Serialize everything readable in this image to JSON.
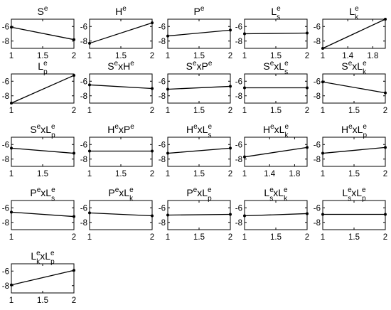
{
  "chart_data": [
    {
      "type": "line",
      "title": {
        "base": "S",
        "sup": "e",
        "sub": ""
      },
      "title_text": "Se",
      "x": [
        1,
        2
      ],
      "y": [
        -6.1,
        -7.8
      ],
      "xlim": [
        1,
        2
      ],
      "ylim": [
        -9,
        -5
      ],
      "xticks": [
        "1",
        "1.5",
        "2"
      ],
      "yticks": [
        "-6",
        "-8"
      ]
    },
    {
      "type": "line",
      "title": {
        "base": "H",
        "sup": "e",
        "sub": ""
      },
      "title_text": "He",
      "x": [
        1,
        2
      ],
      "y": [
        -8.3,
        -5.5
      ],
      "xlim": [
        1,
        2
      ],
      "ylim": [
        -9,
        -5
      ],
      "xticks": [
        "1",
        "1.5",
        "2"
      ],
      "yticks": [
        "-6",
        "-8"
      ]
    },
    {
      "type": "line",
      "title": {
        "base": "P",
        "sup": "e",
        "sub": ""
      },
      "title_text": "Pe",
      "x": [
        1,
        2
      ],
      "y": [
        -7.3,
        -6.5
      ],
      "xlim": [
        1,
        2
      ],
      "ylim": [
        -9,
        -5
      ],
      "xticks": [
        "1",
        "1.5",
        "2"
      ],
      "yticks": [
        "-6",
        "-8"
      ]
    },
    {
      "type": "line",
      "title": {
        "base": "L",
        "sup": "e",
        "sub": "s"
      },
      "title_text": "Les",
      "x": [
        1,
        2
      ],
      "y": [
        -7.0,
        -6.9
      ],
      "xlim": [
        1,
        2
      ],
      "ylim": [
        -9,
        -5
      ],
      "xticks": [
        "1",
        "1.5",
        "2"
      ],
      "yticks": [
        "-6",
        "-8"
      ]
    },
    {
      "type": "line",
      "title": {
        "base": "L",
        "sup": "e",
        "sub": "k"
      },
      "title_text": "Lek",
      "x": [
        1,
        2
      ],
      "y": [
        -9.0,
        -4.8
      ],
      "xlim": [
        1,
        2
      ],
      "ylim": [
        -9,
        -5
      ],
      "xticks": [
        "1",
        "1.4",
        "1.8"
      ],
      "yticks": [
        "-6",
        "-8"
      ]
    },
    {
      "type": "line",
      "title": {
        "base": "L",
        "sup": "e",
        "sub": "p"
      },
      "title_text": "Lep",
      "x": [
        1,
        2
      ],
      "y": [
        -9.0,
        -5.2
      ],
      "xlim": [
        1,
        2
      ],
      "ylim": [
        -9,
        -5
      ],
      "xticks": [
        "1",
        "2"
      ],
      "yticks": [
        "-6",
        "-8"
      ]
    },
    {
      "type": "line",
      "title": {
        "segments": [
          {
            "base": "S",
            "sup": "e",
            "sub": ""
          },
          {
            "base": "xH",
            "sup": "e",
            "sub": ""
          }
        ]
      },
      "title_text": "SexHe",
      "x": [
        1,
        2
      ],
      "y": [
        -6.5,
        -7.0
      ],
      "xlim": [
        1,
        2
      ],
      "ylim": [
        -9,
        -5
      ],
      "xticks": [
        "1",
        "2"
      ],
      "yticks": [
        "-6",
        "-8"
      ]
    },
    {
      "type": "line",
      "title": {
        "segments": [
          {
            "base": "S",
            "sup": "e",
            "sub": ""
          },
          {
            "base": "xP",
            "sup": "e",
            "sub": ""
          }
        ]
      },
      "title_text": "SexPe",
      "x": [
        1,
        2
      ],
      "y": [
        -7.1,
        -6.7
      ],
      "xlim": [
        1,
        2
      ],
      "ylim": [
        -9,
        -5
      ],
      "xticks": [
        "1",
        "1.5",
        "2"
      ],
      "yticks": [
        "-6",
        "-8"
      ]
    },
    {
      "type": "line",
      "title": {
        "segments": [
          {
            "base": "S",
            "sup": "e",
            "sub": ""
          },
          {
            "base": "xL",
            "sup": "e",
            "sub": "s"
          }
        ]
      },
      "title_text": "SexLes",
      "x": [
        1,
        2
      ],
      "y": [
        -6.9,
        -6.9
      ],
      "xlim": [
        1,
        2
      ],
      "ylim": [
        -9,
        -5
      ],
      "xticks": [
        "1",
        "1.5",
        "2"
      ],
      "yticks": [
        "-6",
        "-8"
      ]
    },
    {
      "type": "line",
      "title": {
        "segments": [
          {
            "base": "S",
            "sup": "e",
            "sub": ""
          },
          {
            "base": "xL",
            "sup": "e",
            "sub": "k"
          }
        ]
      },
      "title_text": "SexLek",
      "x": [
        1,
        2
      ],
      "y": [
        -6.1,
        -7.6
      ],
      "xlim": [
        1,
        2
      ],
      "ylim": [
        -9,
        -5
      ],
      "xticks": [
        "1",
        "1.5",
        "2"
      ],
      "yticks": [
        "-6",
        "-8"
      ]
    },
    {
      "type": "line",
      "title": {
        "segments": [
          {
            "base": "S",
            "sup": "e",
            "sub": ""
          },
          {
            "base": "xL",
            "sup": "e",
            "sub": "p"
          }
        ]
      },
      "title_text": "SexLep",
      "x": [
        1,
        2
      ],
      "y": [
        -6.5,
        -7.2
      ],
      "xlim": [
        1,
        2
      ],
      "ylim": [
        -9,
        -5
      ],
      "xticks": [
        "1",
        "1.5"
      ],
      "yticks": [
        "-6",
        "-8"
      ]
    },
    {
      "type": "line",
      "title": {
        "segments": [
          {
            "base": "H",
            "sup": "e",
            "sub": ""
          },
          {
            "base": "xP",
            "sup": "e",
            "sub": ""
          }
        ]
      },
      "title_text": "HexPe",
      "x": [
        1,
        2
      ],
      "y": [
        -6.9,
        -6.9
      ],
      "xlim": [
        1,
        2
      ],
      "ylim": [
        -9,
        -5
      ],
      "xticks": [
        "1",
        "1.5",
        "2"
      ],
      "yticks": [
        "-6",
        "-8"
      ]
    },
    {
      "type": "line",
      "title": {
        "segments": [
          {
            "base": "H",
            "sup": "e",
            "sub": ""
          },
          {
            "base": "xL",
            "sup": "e",
            "sub": "s"
          }
        ]
      },
      "title_text": "HexLes",
      "x": [
        1,
        2
      ],
      "y": [
        -7.2,
        -6.5
      ],
      "xlim": [
        1,
        2
      ],
      "ylim": [
        -9,
        -5
      ],
      "xticks": [
        "1",
        "1.5",
        "2"
      ],
      "yticks": [
        "-6",
        "-8"
      ]
    },
    {
      "type": "line",
      "title": {
        "segments": [
          {
            "base": "H",
            "sup": "e",
            "sub": ""
          },
          {
            "base": "xL",
            "sup": "e",
            "sub": "k"
          }
        ]
      },
      "title_text": "HexLek",
      "x": [
        1,
        2
      ],
      "y": [
        -7.7,
        -6.4
      ],
      "xlim": [
        1,
        2
      ],
      "ylim": [
        -9,
        -5
      ],
      "xticks": [
        "1",
        "1.4",
        "1.8"
      ],
      "yticks": [
        "-6",
        "-8"
      ]
    },
    {
      "type": "line",
      "title": {
        "segments": [
          {
            "base": "H",
            "sup": "e",
            "sub": ""
          },
          {
            "base": "xL",
            "sup": "e",
            "sub": "p"
          }
        ]
      },
      "title_text": "HexLep",
      "x": [
        1,
        2
      ],
      "y": [
        -7.2,
        -6.4
      ],
      "xlim": [
        1,
        2
      ],
      "ylim": [
        -9,
        -5
      ],
      "xticks": [
        "1",
        "1.5",
        "2"
      ],
      "yticks": [
        "-6",
        "-8"
      ]
    },
    {
      "type": "line",
      "title": {
        "segments": [
          {
            "base": "P",
            "sup": "e",
            "sub": ""
          },
          {
            "base": "xL",
            "sup": "e",
            "sub": "s"
          }
        ]
      },
      "title_text": "PexLes",
      "x": [
        1,
        2
      ],
      "y": [
        -6.6,
        -7.2
      ],
      "xlim": [
        1,
        2
      ],
      "ylim": [
        -9,
        -5
      ],
      "xticks": [
        "1",
        "2"
      ],
      "yticks": [
        "-6",
        "-8"
      ]
    },
    {
      "type": "line",
      "title": {
        "segments": [
          {
            "base": "P",
            "sup": "e",
            "sub": ""
          },
          {
            "base": "xL",
            "sup": "e",
            "sub": "k"
          }
        ]
      },
      "title_text": "PexLek",
      "x": [
        1,
        2
      ],
      "y": [
        -6.7,
        -7.1
      ],
      "xlim": [
        1,
        2
      ],
      "ylim": [
        -9,
        -5
      ],
      "xticks": [
        "1",
        "2"
      ],
      "yticks": [
        "-6",
        "-8"
      ]
    },
    {
      "type": "line",
      "title": {
        "segments": [
          {
            "base": "P",
            "sup": "e",
            "sub": ""
          },
          {
            "base": "xL",
            "sup": "e",
            "sub": "p"
          }
        ]
      },
      "title_text": "PexLep",
      "x": [
        1,
        2
      ],
      "y": [
        -7.0,
        -6.9
      ],
      "xlim": [
        1,
        2
      ],
      "ylim": [
        -9,
        -5
      ],
      "xticks": [
        "1",
        "1.5",
        "2"
      ],
      "yticks": [
        "-6",
        "-8"
      ]
    },
    {
      "type": "line",
      "title": {
        "segments": [
          {
            "base": "L",
            "sup": "e",
            "sub": "s"
          },
          {
            "base": "xL",
            "sup": "e",
            "sub": "k"
          }
        ]
      },
      "title_text": "LesxLek",
      "x": [
        1,
        2
      ],
      "y": [
        -7.1,
        -6.8
      ],
      "xlim": [
        1,
        2
      ],
      "ylim": [
        -9,
        -5
      ],
      "xticks": [
        "1",
        "1.5",
        "2"
      ],
      "yticks": [
        "-6",
        "-8"
      ]
    },
    {
      "type": "line",
      "title": {
        "segments": [
          {
            "base": "L",
            "sup": "e",
            "sub": "s"
          },
          {
            "base": "xL",
            "sup": "e",
            "sub": "p"
          }
        ]
      },
      "title_text": "LesxLep",
      "x": [
        1,
        2
      ],
      "y": [
        -6.9,
        -6.9
      ],
      "xlim": [
        1,
        2
      ],
      "ylim": [
        -9,
        -5
      ],
      "xticks": [
        "1",
        "1.5",
        "2"
      ],
      "yticks": [
        "-6",
        "-8"
      ]
    },
    {
      "type": "line",
      "title": {
        "segments": [
          {
            "base": "L",
            "sup": "e",
            "sub": "k"
          },
          {
            "base": "xL",
            "sup": "e",
            "sub": "p"
          }
        ]
      },
      "title_text": "LekxLep",
      "x": [
        1,
        2
      ],
      "y": [
        -7.9,
        -5.9
      ],
      "xlim": [
        1,
        2
      ],
      "ylim": [
        -9,
        -5
      ],
      "xticks": [
        "1",
        "1.5",
        "2"
      ],
      "yticks": [
        "-6",
        "-8"
      ]
    }
  ],
  "style": {
    "line_color": "#000000",
    "axis_color": "#000000",
    "background": "#ffffff"
  }
}
